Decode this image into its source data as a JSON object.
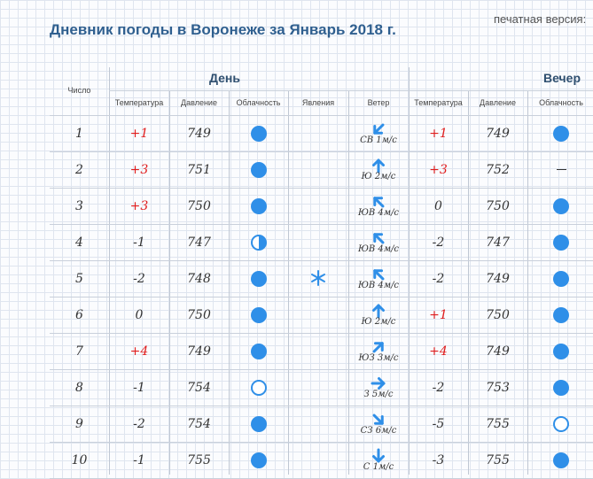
{
  "title": "Дневник погоды в Воронеже за Январь 2018 г.",
  "print_link": "печатная версия:",
  "headers": {
    "day_group": "День",
    "evening_group": "Вечер",
    "number": "Число",
    "temp": "Температура",
    "pressure": "Давление",
    "clouds": "Облачность",
    "phenomena": "Явления",
    "wind": "Ветер"
  },
  "rows": [
    {
      "n": "1",
      "dt": "+1",
      "dp": "749",
      "dc": "full",
      "ph": "",
      "wd": "down-left",
      "wt": "СВ 1м/с",
      "et": "+1",
      "ep": "749",
      "ec": "full"
    },
    {
      "n": "2",
      "dt": "+3",
      "dp": "751",
      "dc": "full",
      "ph": "",
      "wd": "up",
      "wt": "Ю 2м/с",
      "et": "+3",
      "ep": "752",
      "ec": "none"
    },
    {
      "n": "3",
      "dt": "+3",
      "dp": "750",
      "dc": "full",
      "ph": "",
      "wd": "up-left",
      "wt": "ЮВ 4м/с",
      "et": "0",
      "ep": "750",
      "ec": "full"
    },
    {
      "n": "4",
      "dt": "-1",
      "dp": "747",
      "dc": "half",
      "ph": "",
      "wd": "up-left",
      "wt": "ЮВ 4м/с",
      "et": "-2",
      "ep": "747",
      "ec": "full"
    },
    {
      "n": "5",
      "dt": "-2",
      "dp": "748",
      "dc": "full",
      "ph": "snow",
      "wd": "up-left",
      "wt": "ЮВ 4м/с",
      "et": "-2",
      "ep": "749",
      "ec": "full"
    },
    {
      "n": "6",
      "dt": "0",
      "dp": "750",
      "dc": "full",
      "ph": "",
      "wd": "up",
      "wt": "Ю 2м/с",
      "et": "+1",
      "ep": "750",
      "ec": "full"
    },
    {
      "n": "7",
      "dt": "+4",
      "dp": "749",
      "dc": "full",
      "ph": "",
      "wd": "up-right",
      "wt": "ЮЗ 3м/с",
      "et": "+4",
      "ep": "749",
      "ec": "full"
    },
    {
      "n": "8",
      "dt": "-1",
      "dp": "754",
      "dc": "empty",
      "ph": "",
      "wd": "right",
      "wt": "З 5м/с",
      "et": "-2",
      "ep": "753",
      "ec": "full"
    },
    {
      "n": "9",
      "dt": "-2",
      "dp": "754",
      "dc": "full",
      "ph": "",
      "wd": "down-right",
      "wt": "СЗ 6м/с",
      "et": "-5",
      "ep": "755",
      "ec": "empty"
    },
    {
      "n": "10",
      "dt": "-1",
      "dp": "755",
      "dc": "full",
      "ph": "",
      "wd": "down",
      "wt": "С 1м/с",
      "et": "-3",
      "ep": "755",
      "ec": "full"
    }
  ],
  "colors": {
    "accent": "#2f8fe8",
    "positive_temp": "#e01c1c",
    "title": "#2f5f8f"
  }
}
